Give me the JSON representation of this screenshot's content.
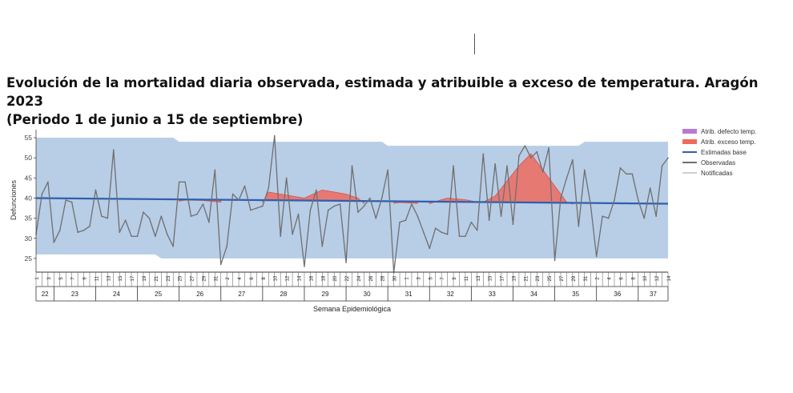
{
  "title": "Evolución de la mortalidad diaria observada, estimada y atribuible a exceso de temperatura. Aragón 2023\n(Periodo 1 de junio a 15 de septiembre)",
  "chart_data": {
    "type": "line",
    "ylabel": "Defunciones",
    "xlabel": "Semana Epidemiológica",
    "ylim": [
      22,
      57
    ],
    "yticks": [
      25,
      30,
      35,
      40,
      45,
      50,
      55
    ],
    "grid": false,
    "legend_position": "right",
    "legend": [
      {
        "name": "Atrib. defecto temp.",
        "color": "#b57ad8",
        "style": "area"
      },
      {
        "name": "Atrib. exceso temp.",
        "color": "#ee6a5e",
        "style": "area"
      },
      {
        "name": "Estimadas base",
        "color": "#2f5fae",
        "style": "line"
      },
      {
        "name": "Observadas",
        "color": "#6f6f6f",
        "style": "line"
      },
      {
        "name": "Notificadas",
        "color": "#cfcfcf",
        "style": "line"
      }
    ],
    "x_start_day": 152,
    "x_end_day": 258,
    "day_ticks": [
      "1",
      "3",
      "5",
      "7",
      "9",
      "11",
      "13",
      "15",
      "17",
      "19",
      "21",
      "23",
      "25",
      "27",
      "29",
      "31",
      "2",
      "4",
      "6",
      "8",
      "10",
      "12",
      "14",
      "16",
      "18",
      "20",
      "22",
      "24",
      "26",
      "28",
      "30",
      "1",
      "3",
      "5",
      "7",
      "9",
      "11",
      "13",
      "15",
      "17",
      "19",
      "21",
      "23",
      "25",
      "27",
      "29",
      "31",
      "2",
      "4",
      "6",
      "8",
      "10",
      "12",
      "14"
    ],
    "weeks": [
      {
        "label": "22",
        "start": 152,
        "end": 155
      },
      {
        "label": "23",
        "start": 155,
        "end": 162
      },
      {
        "label": "24",
        "start": 162,
        "end": 169
      },
      {
        "label": "25",
        "start": 169,
        "end": 176
      },
      {
        "label": "26",
        "start": 176,
        "end": 183
      },
      {
        "label": "27",
        "start": 183,
        "end": 190
      },
      {
        "label": "28",
        "start": 190,
        "end": 197
      },
      {
        "label": "29",
        "start": 197,
        "end": 204
      },
      {
        "label": "30",
        "start": 204,
        "end": 211
      },
      {
        "label": "31",
        "start": 211,
        "end": 218
      },
      {
        "label": "32",
        "start": 218,
        "end": 225
      },
      {
        "label": "33",
        "start": 225,
        "end": 232
      },
      {
        "label": "34",
        "start": 232,
        "end": 239
      },
      {
        "label": "35",
        "start": 239,
        "end": 246
      },
      {
        "label": "36",
        "start": 246,
        "end": 253
      },
      {
        "label": "37",
        "start": 253,
        "end": 258
      }
    ],
    "confidence_band": {
      "color": "#b8cde6",
      "upper": [
        [
          152,
          55
        ],
        [
          175,
          55
        ],
        [
          176,
          54
        ],
        [
          210,
          54
        ],
        [
          211,
          53
        ],
        [
          243,
          53
        ],
        [
          244,
          54
        ],
        [
          258,
          54
        ]
      ],
      "lower": [
        [
          152,
          26
        ],
        [
          172,
          26
        ],
        [
          173,
          25
        ],
        [
          258,
          25
        ]
      ]
    },
    "series": [
      {
        "name": "Observadas",
        "color": "#6f6f6f",
        "values": [
          31,
          41,
          44,
          29,
          32,
          39.5,
          39,
          31.5,
          32,
          33,
          42,
          35.5,
          35,
          52,
          31.5,
          34.5,
          30.5,
          30.5,
          36.5,
          35,
          30.5,
          35.5,
          31,
          28,
          44,
          44,
          35.5,
          36,
          38.5,
          34,
          47,
          23.5,
          28,
          41,
          39.5,
          43,
          37,
          37.5,
          38,
          42.5,
          55.5,
          30.5,
          45,
          31,
          36,
          23,
          37,
          42,
          28,
          37,
          38,
          38.5,
          24,
          48,
          36.5,
          38,
          40,
          35,
          40,
          47,
          21.5,
          34,
          34.5,
          38.5,
          35.5,
          31.5,
          27.5,
          32.5,
          31.5,
          31,
          48,
          30.5,
          30.5,
          34,
          32,
          51,
          34.5,
          48.5,
          35.5,
          48,
          33.5,
          50.5,
          53,
          50,
          51.5,
          46.5,
          52.5,
          24.5,
          40,
          45,
          49.5,
          33,
          47,
          38.5,
          25.5,
          35.5,
          35,
          39.5,
          47.5,
          46,
          46,
          39.5,
          35,
          42.5,
          35.5,
          48,
          50
        ]
      },
      {
        "name": "Estimadas base",
        "color": "#2f5fae",
        "values": [
          40.0,
          38.6
        ]
      },
      {
        "name": "Atrib. exceso temp.",
        "color": "#ee6a5e",
        "areas": [
          [
            [
              176,
              39.2
            ],
            [
              177,
              39.5
            ],
            [
              180,
              39.4
            ],
            [
              183,
              39
            ]
          ],
          [
            [
              190,
              39
            ],
            [
              191,
              41.5
            ],
            [
              193,
              41
            ],
            [
              197,
              40
            ],
            [
              200,
              42
            ],
            [
              204,
              41
            ],
            [
              206,
              40
            ],
            [
              207,
              38.7
            ]
          ],
          [
            [
              212,
              38.7
            ],
            [
              213,
              38.9
            ],
            [
              216,
              38.7
            ]
          ],
          [
            [
              218,
              38.6
            ],
            [
              220,
              39.6
            ],
            [
              221,
              40
            ],
            [
              224,
              39.6
            ],
            [
              226,
              39
            ],
            [
              227,
              39
            ],
            [
              229,
              40.5
            ],
            [
              233,
              48
            ],
            [
              235,
              51
            ],
            [
              239,
              43
            ],
            [
              241,
              39
            ],
            [
              242,
              38.5
            ]
          ]
        ]
      }
    ]
  }
}
